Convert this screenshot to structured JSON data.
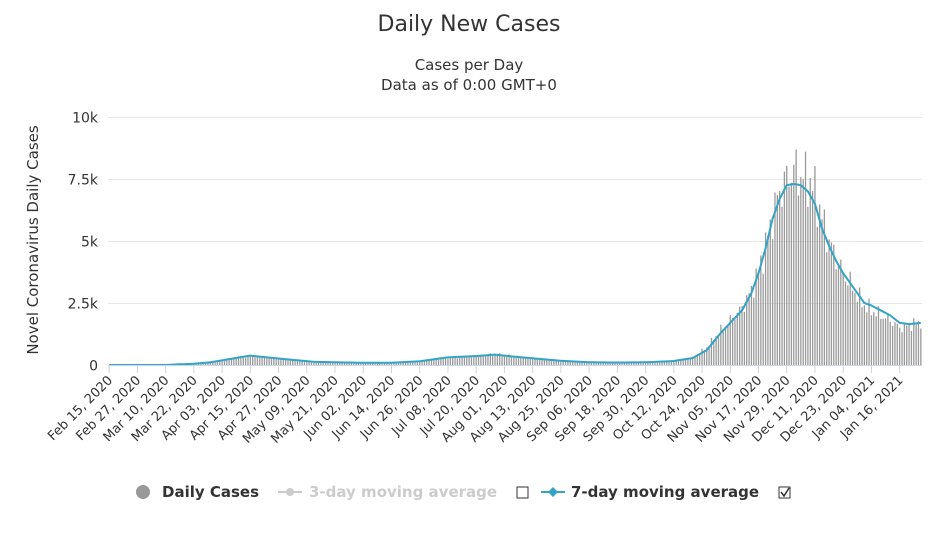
{
  "chart_data": {
    "type": "bar",
    "title": "Daily New Cases",
    "subtitle_lines": [
      "Cases per Day",
      "Data as of 0:00 GMT+0"
    ],
    "ylabel": "Novel Coronavirus Daily Cases",
    "xlabel": "",
    "ylim": [
      0,
      10000
    ],
    "y_ticks": [
      0,
      2500,
      5000,
      7500,
      10000
    ],
    "y_tick_labels": [
      "0",
      "2.5k",
      "5k",
      "7.5k",
      "10k"
    ],
    "x_start_date": "2020-02-15",
    "x_end_date": "2021-01-25",
    "x_tick_labels": [
      "Feb 15, 2020",
      "Feb 27, 2020",
      "Mar 10, 2020",
      "Mar 22, 2020",
      "Apr 03, 2020",
      "Apr 15, 2020",
      "Apr 27, 2020",
      "May 09, 2020",
      "May 21, 2020",
      "Jun 02, 2020",
      "Jun 14, 2020",
      "Jun 26, 2020",
      "Jul 08, 2020",
      "Jul 20, 2020",
      "Aug 01, 2020",
      "Aug 13, 2020",
      "Aug 25, 2020",
      "Sep 06, 2020",
      "Sep 18, 2020",
      "Sep 30, 2020",
      "Oct 12, 2020",
      "Oct 24, 2020",
      "Nov 05, 2020",
      "Nov 17, 2020",
      "Nov 29, 2020",
      "Dec 11, 2020",
      "Dec 23, 2020",
      "Jan 04, 2021",
      "Jan 16, 2021"
    ],
    "grid": true,
    "legend_position": "bottom-center",
    "series": [
      {
        "name": "Daily Cases",
        "kind": "bar",
        "color": "#999999",
        "enabled": true,
        "keypoints": [
          [
            "2020-02-15",
            0
          ],
          [
            "2020-03-10",
            0
          ],
          [
            "2020-03-12",
            20
          ],
          [
            "2020-03-22",
            50
          ],
          [
            "2020-03-29",
            120
          ],
          [
            "2020-04-05",
            230
          ],
          [
            "2020-04-10",
            320
          ],
          [
            "2020-04-15",
            380
          ],
          [
            "2020-04-20",
            330
          ],
          [
            "2020-04-27",
            260
          ],
          [
            "2020-05-05",
            190
          ],
          [
            "2020-05-12",
            130
          ],
          [
            "2020-05-21",
            110
          ],
          [
            "2020-06-02",
            90
          ],
          [
            "2020-06-14",
            90
          ],
          [
            "2020-06-26",
            150
          ],
          [
            "2020-07-08",
            310
          ],
          [
            "2020-07-20",
            360
          ],
          [
            "2020-07-28",
            420
          ],
          [
            "2020-08-05",
            340
          ],
          [
            "2020-08-13",
            270
          ],
          [
            "2020-08-25",
            170
          ],
          [
            "2020-09-06",
            110
          ],
          [
            "2020-09-18",
            100
          ],
          [
            "2020-09-30",
            110
          ],
          [
            "2020-10-12",
            170
          ],
          [
            "2020-10-20",
            300
          ],
          [
            "2020-10-26",
            700
          ],
          [
            "2020-11-01",
            1400
          ],
          [
            "2020-11-05",
            1800
          ],
          [
            "2020-11-10",
            2300
          ],
          [
            "2020-11-14",
            3000
          ],
          [
            "2020-11-17",
            3800
          ],
          [
            "2020-11-20",
            4800
          ],
          [
            "2020-11-23",
            6000
          ],
          [
            "2020-11-26",
            7000
          ],
          [
            "2020-11-29",
            7500
          ],
          [
            "2020-12-02",
            7900
          ],
          [
            "2020-12-05",
            7600
          ],
          [
            "2020-12-08",
            7500
          ],
          [
            "2020-12-11",
            7000
          ],
          [
            "2020-12-14",
            5900
          ],
          [
            "2020-12-17",
            5000
          ],
          [
            "2020-12-20",
            4300
          ],
          [
            "2020-12-23",
            3700
          ],
          [
            "2020-12-26",
            3300
          ],
          [
            "2020-12-29",
            2800
          ],
          [
            "2021-01-01",
            2400
          ],
          [
            "2021-01-04",
            2200
          ],
          [
            "2021-01-08",
            2000
          ],
          [
            "2021-01-12",
            1800
          ],
          [
            "2021-01-16",
            1500
          ],
          [
            "2021-01-20",
            1600
          ],
          [
            "2021-01-25",
            1750
          ]
        ]
      },
      {
        "name": "3-day moving average",
        "kind": "line",
        "color": "#cccccc",
        "enabled": false
      },
      {
        "name": "7-day moving average",
        "kind": "line",
        "color": "#33a3c6",
        "enabled": true,
        "keypoints": [
          [
            "2020-02-15",
            0
          ],
          [
            "2020-03-10",
            0
          ],
          [
            "2020-03-15",
            25
          ],
          [
            "2020-03-22",
            50
          ],
          [
            "2020-03-29",
            110
          ],
          [
            "2020-04-05",
            220
          ],
          [
            "2020-04-10",
            300
          ],
          [
            "2020-04-15",
            380
          ],
          [
            "2020-04-20",
            330
          ],
          [
            "2020-04-27",
            260
          ],
          [
            "2020-05-05",
            190
          ],
          [
            "2020-05-12",
            130
          ],
          [
            "2020-05-21",
            110
          ],
          [
            "2020-06-02",
            90
          ],
          [
            "2020-06-14",
            90
          ],
          [
            "2020-06-26",
            150
          ],
          [
            "2020-07-08",
            310
          ],
          [
            "2020-07-20",
            360
          ],
          [
            "2020-07-28",
            420
          ],
          [
            "2020-08-05",
            340
          ],
          [
            "2020-08-13",
            270
          ],
          [
            "2020-08-25",
            170
          ],
          [
            "2020-09-06",
            110
          ],
          [
            "2020-09-18",
            100
          ],
          [
            "2020-09-30",
            110
          ],
          [
            "2020-10-12",
            160
          ],
          [
            "2020-10-20",
            280
          ],
          [
            "2020-10-26",
            600
          ],
          [
            "2020-11-01",
            1300
          ],
          [
            "2020-11-05",
            1700
          ],
          [
            "2020-11-10",
            2200
          ],
          [
            "2020-11-14",
            2900
          ],
          [
            "2020-11-17",
            3700
          ],
          [
            "2020-11-20",
            4700
          ],
          [
            "2020-11-23",
            5900
          ],
          [
            "2020-11-26",
            6700
          ],
          [
            "2020-11-29",
            7250
          ],
          [
            "2020-12-02",
            7300
          ],
          [
            "2020-12-05",
            7250
          ],
          [
            "2020-12-08",
            7000
          ],
          [
            "2020-12-11",
            6500
          ],
          [
            "2020-12-14",
            5500
          ],
          [
            "2020-12-17",
            4800
          ],
          [
            "2020-12-20",
            4200
          ],
          [
            "2020-12-23",
            3700
          ],
          [
            "2020-12-26",
            3300
          ],
          [
            "2020-12-29",
            2900
          ],
          [
            "2021-01-01",
            2500
          ],
          [
            "2021-01-04",
            2400
          ],
          [
            "2021-01-08",
            2200
          ],
          [
            "2021-01-12",
            2000
          ],
          [
            "2021-01-16",
            1700
          ],
          [
            "2021-01-20",
            1650
          ],
          [
            "2021-01-25",
            1700
          ]
        ]
      }
    ]
  },
  "legend": {
    "items": [
      {
        "label": "Daily Cases",
        "color": "#999999",
        "text_color": "#333333"
      },
      {
        "label": "3-day moving average",
        "color": "#cccccc",
        "text_color": "#cccccc",
        "checkbox_checked": false
      },
      {
        "label": "7-day moving average",
        "color": "#33a3c6",
        "text_color": "#333333",
        "checkbox_checked": true
      }
    ]
  }
}
